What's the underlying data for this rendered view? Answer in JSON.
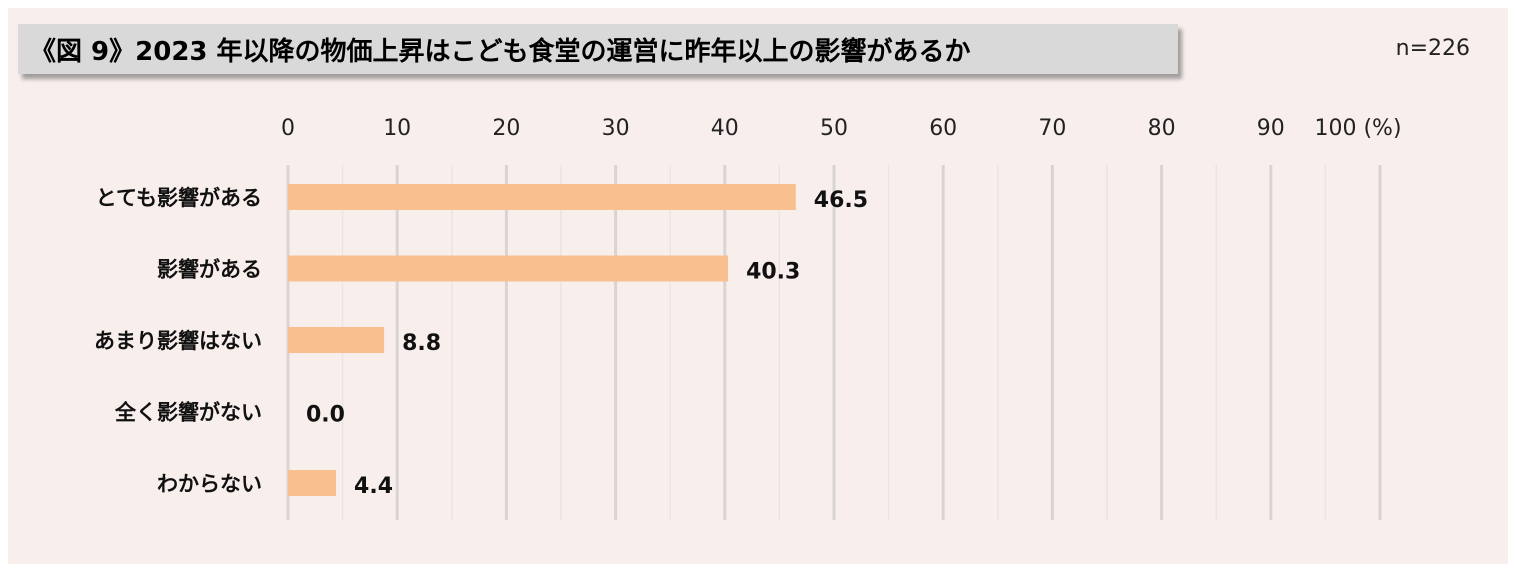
{
  "title": "《図 9》2023 年以降の物価上昇はこども食堂の運営に昨年以上の影響があるか",
  "sample_size": "n=226",
  "chart_data": {
    "type": "bar",
    "orientation": "horizontal",
    "categories": [
      "とても影響がある",
      "影響がある",
      "あまり影響はない",
      "全く影響がない",
      "わからない"
    ],
    "values": [
      46.5,
      40.3,
      8.8,
      0.0,
      4.4
    ],
    "value_labels": [
      "46.5",
      "40.3",
      "8.8",
      "0.0",
      "4.4"
    ],
    "xlim": [
      0,
      100
    ],
    "x_ticks": [
      "0",
      "10",
      "20",
      "30",
      "40",
      "50",
      "60",
      "70",
      "80",
      "90",
      "100 (%)"
    ],
    "axis_position": "top",
    "grid": true,
    "bar_color": "#f9c08f",
    "grid_color": "#d9d4d2"
  }
}
